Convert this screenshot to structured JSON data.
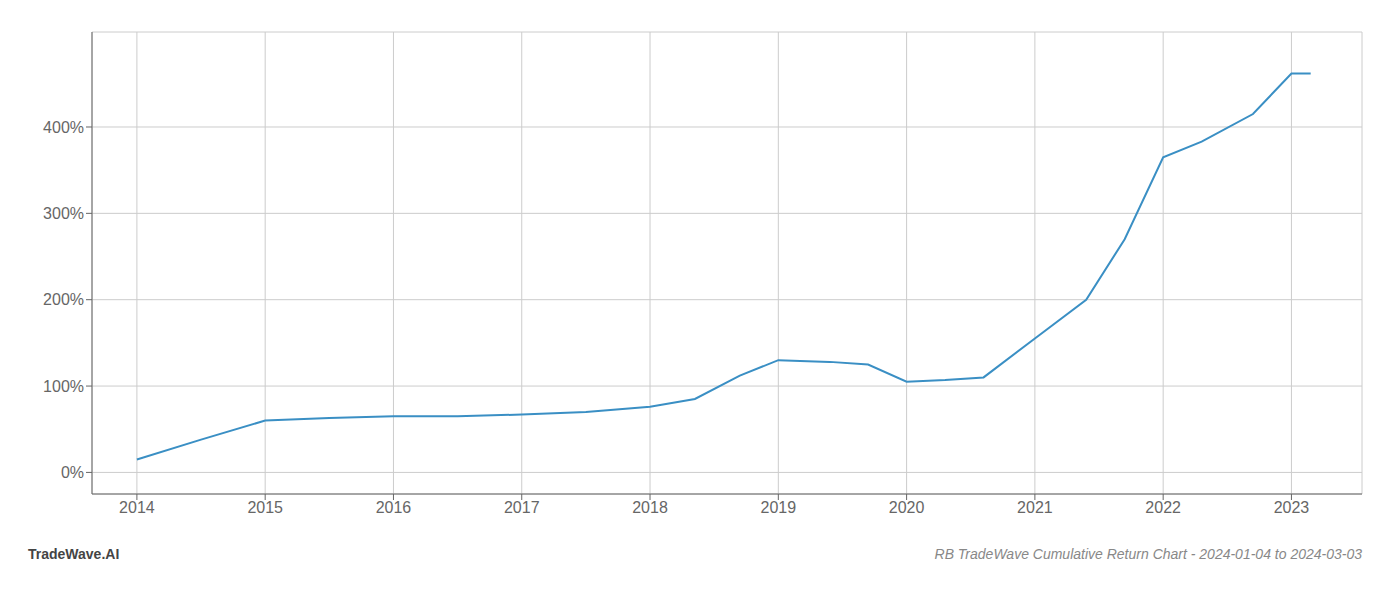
{
  "chart_data": {
    "type": "line",
    "title": "RB TradeWave Cumulative Return Chart - 2024-01-04 to 2024-03-03",
    "annotations": [
      "TradeWave.AI"
    ],
    "x": [
      2014.0,
      2014.5,
      2015.0,
      2015.5,
      2016.0,
      2016.5,
      2017.0,
      2017.5,
      2018.0,
      2018.35,
      2018.7,
      2019.0,
      2019.4,
      2019.7,
      2020.0,
      2020.3,
      2020.6,
      2021.0,
      2021.4,
      2021.7,
      2022.0,
      2022.3,
      2022.7,
      2023.0,
      2023.15
    ],
    "values": [
      15,
      38,
      60,
      63,
      65,
      65,
      67,
      70,
      76,
      85,
      112,
      130,
      128,
      125,
      105,
      107,
      110,
      155,
      200,
      270,
      365,
      383,
      415,
      462,
      462
    ],
    "color": "#3a8fc4",
    "xlim": [
      2013.65,
      2023.55
    ],
    "ylim": [
      -25,
      510
    ],
    "xticks": [
      2014,
      2015,
      2016,
      2017,
      2018,
      2019,
      2020,
      2021,
      2022,
      2023
    ],
    "yticks": [
      {
        "value": 0,
        "label": "0%"
      },
      {
        "value": 100,
        "label": "100%"
      },
      {
        "value": 200,
        "label": "200%"
      },
      {
        "value": 300,
        "label": "300%"
      },
      {
        "value": 400,
        "label": "400%"
      }
    ],
    "grid": true
  }
}
